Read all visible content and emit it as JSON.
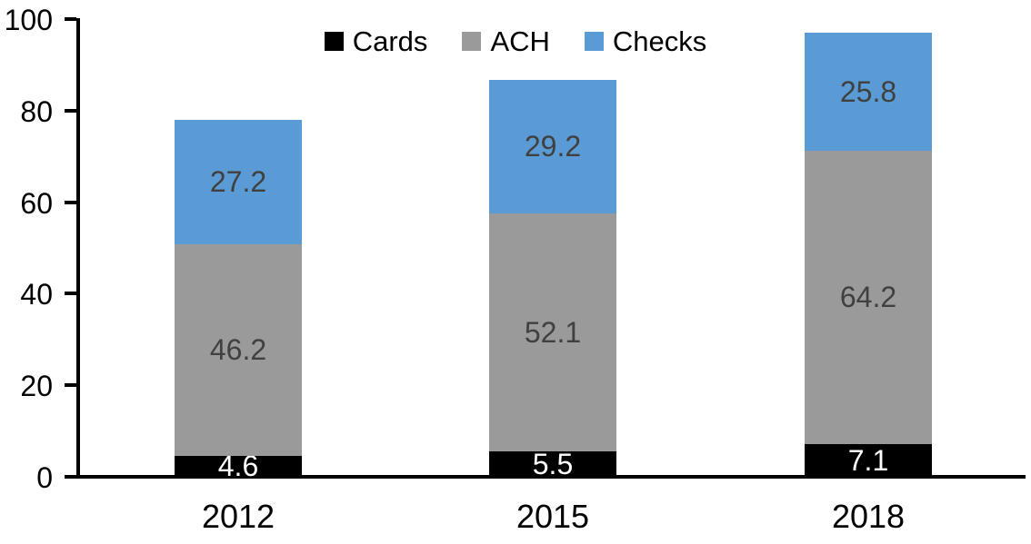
{
  "chart_data": {
    "type": "bar",
    "stacked": true,
    "title": "",
    "xlabel": "",
    "ylabel": "",
    "categories": [
      "2012",
      "2015",
      "2018"
    ],
    "series": [
      {
        "name": "Cards",
        "color": "#000000",
        "label_color": "#FFFFFF",
        "values": [
          4.6,
          5.5,
          7.1
        ]
      },
      {
        "name": "ACH",
        "color": "#9A9A9A",
        "label_color": "#404040",
        "values": [
          46.2,
          52.1,
          64.2
        ]
      },
      {
        "name": "Checks",
        "color": "#5B9BD5",
        "label_color": "#404040",
        "values": [
          27.2,
          29.2,
          25.8
        ]
      }
    ],
    "ylim": [
      0,
      100
    ],
    "yticks": [
      0,
      20,
      40,
      60,
      80,
      100
    ],
    "grid": false,
    "legend_position": "top-center",
    "axis_color": "#000000",
    "background_color": "#FFFFFF"
  }
}
